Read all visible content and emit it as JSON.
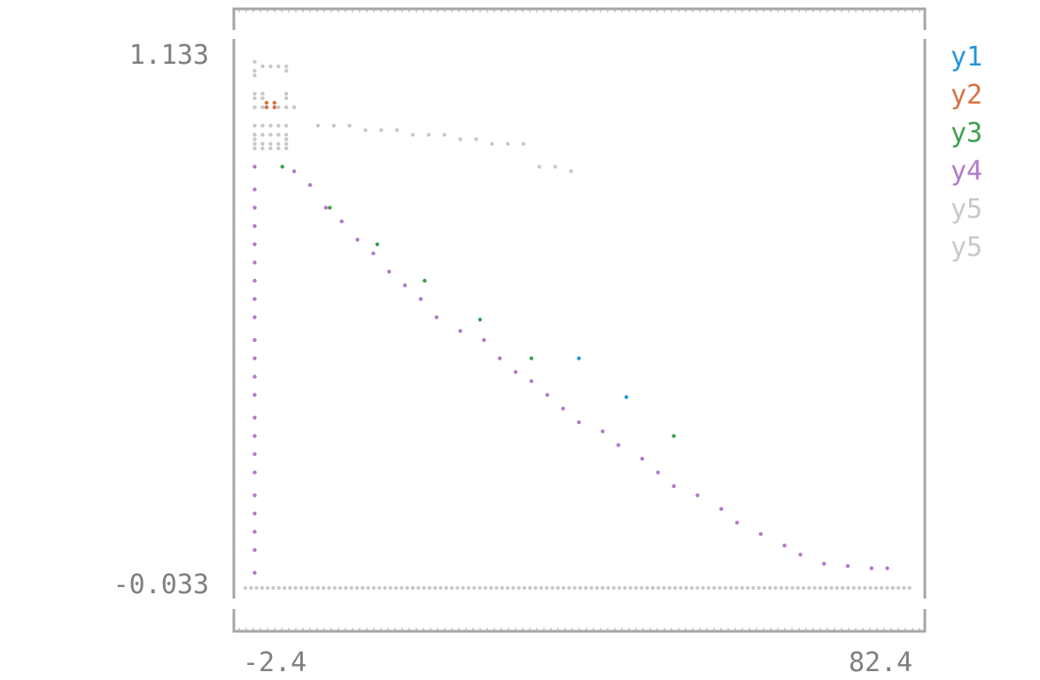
{
  "chart_data": {
    "type": "scatter",
    "title": "",
    "xlabel": "",
    "ylabel": "",
    "xlim": [
      -2.4,
      82.4
    ],
    "ylim": [
      -0.033,
      1.133
    ],
    "x_tick_labels": [
      "-2.4",
      "82.4"
    ],
    "y_tick_labels": [
      "1.133",
      "-0.033"
    ],
    "legend_placement": "right",
    "grid": false,
    "series": [
      {
        "name": "y1",
        "color": "#2196d9",
        "points": [
          [
            40,
            0.47
          ],
          [
            46,
            0.385
          ]
        ]
      },
      {
        "name": "y2",
        "color": "#d97044",
        "points": [
          [
            0.5,
            1.03
          ],
          [
            1.5,
            1.03
          ],
          [
            0.5,
            1.02
          ],
          [
            1.5,
            1.02
          ]
        ]
      },
      {
        "name": "y3",
        "color": "#3f9f4f",
        "points": [
          [
            2.5,
            0.89
          ],
          [
            8.5,
            0.8
          ],
          [
            14.5,
            0.72
          ],
          [
            20.5,
            0.64
          ],
          [
            27.5,
            0.555
          ],
          [
            34,
            0.47
          ],
          [
            52,
            0.3
          ]
        ]
      },
      {
        "name": "y4",
        "color": "#b27ac8",
        "points": [
          [
            -1,
            0.89
          ],
          [
            -1,
            0.84
          ],
          [
            -1,
            0.8
          ],
          [
            -1,
            0.76
          ],
          [
            -1,
            0.72
          ],
          [
            -1,
            0.68
          ],
          [
            -1,
            0.64
          ],
          [
            -1,
            0.6
          ],
          [
            -1,
            0.56
          ],
          [
            -1,
            0.51
          ],
          [
            -1,
            0.47
          ],
          [
            -1,
            0.43
          ],
          [
            -1,
            0.39
          ],
          [
            -1,
            0.34
          ],
          [
            -1,
            0.3
          ],
          [
            -1,
            0.26
          ],
          [
            -1,
            0.22
          ],
          [
            -1,
            0.17
          ],
          [
            -1,
            0.13
          ],
          [
            -1,
            0.09
          ],
          [
            -1,
            0.05
          ],
          [
            -1,
            0.0
          ],
          [
            4,
            0.88
          ],
          [
            6,
            0.85
          ],
          [
            8,
            0.8
          ],
          [
            10,
            0.77
          ],
          [
            12,
            0.73
          ],
          [
            14,
            0.7
          ],
          [
            16,
            0.66
          ],
          [
            18,
            0.63
          ],
          [
            20,
            0.6
          ],
          [
            22,
            0.56
          ],
          [
            25,
            0.53
          ],
          [
            28,
            0.51
          ],
          [
            30,
            0.47
          ],
          [
            32,
            0.44
          ],
          [
            34,
            0.42
          ],
          [
            36,
            0.39
          ],
          [
            38,
            0.36
          ],
          [
            40,
            0.33
          ],
          [
            43,
            0.31
          ],
          [
            45,
            0.28
          ],
          [
            48,
            0.25
          ],
          [
            50,
            0.22
          ],
          [
            52,
            0.19
          ],
          [
            55,
            0.17
          ],
          [
            58,
            0.14
          ],
          [
            60,
            0.11
          ],
          [
            63,
            0.085
          ],
          [
            66,
            0.06
          ],
          [
            68,
            0.04
          ],
          [
            71,
            0.02
          ],
          [
            74,
            0.015
          ],
          [
            77,
            0.01
          ],
          [
            79,
            0.01
          ]
        ]
      },
      {
        "name": "y5",
        "color": "#c8c8c8",
        "points": [
          [
            -1,
            1.12
          ],
          [
            0,
            1.11
          ],
          [
            1,
            1.11
          ],
          [
            2,
            1.11
          ],
          [
            3,
            1.11
          ],
          [
            -1,
            1.1
          ],
          [
            3,
            1.1
          ],
          [
            -1,
            1.09
          ],
          [
            -1,
            1.05
          ],
          [
            0,
            1.05
          ],
          [
            3,
            1.05
          ],
          [
            -1,
            1.04
          ],
          [
            0,
            1.04
          ],
          [
            3,
            1.04
          ],
          [
            -1,
            1.02
          ],
          [
            0,
            1.02
          ],
          [
            2,
            1.02
          ],
          [
            3,
            1.02
          ],
          [
            4,
            1.02
          ],
          [
            -1,
            0.98
          ],
          [
            0,
            0.98
          ],
          [
            1,
            0.98
          ],
          [
            2,
            0.98
          ],
          [
            3,
            0.98
          ],
          [
            -1,
            0.96
          ],
          [
            0,
            0.96
          ],
          [
            1,
            0.96
          ],
          [
            2,
            0.96
          ],
          [
            3,
            0.96
          ],
          [
            -1,
            0.95
          ],
          [
            3,
            0.95
          ],
          [
            -1,
            0.94
          ],
          [
            0,
            0.94
          ],
          [
            1,
            0.94
          ],
          [
            2,
            0.94
          ],
          [
            3,
            0.94
          ],
          [
            -1,
            0.93
          ],
          [
            0,
            0.93
          ],
          [
            1,
            0.93
          ],
          [
            2,
            0.93
          ],
          [
            3,
            0.93
          ],
          [
            7,
            0.98
          ],
          [
            9,
            0.98
          ],
          [
            11,
            0.98
          ],
          [
            13,
            0.97
          ],
          [
            15,
            0.97
          ],
          [
            17,
            0.97
          ],
          [
            19,
            0.96
          ],
          [
            21,
            0.96
          ],
          [
            23,
            0.96
          ],
          [
            25,
            0.95
          ],
          [
            27,
            0.95
          ],
          [
            29,
            0.94
          ],
          [
            31,
            0.94
          ],
          [
            33,
            0.94
          ],
          [
            35,
            0.89
          ],
          [
            37,
            0.89
          ],
          [
            39,
            0.88
          ]
        ]
      },
      {
        "name": "y5",
        "color": "#c8c8c8",
        "points": []
      },
      {
        "name": "",
        "color": "#808080",
        "points": [
          [
            -2.4,
            -0.033
          ],
          [
            0,
            -0.033
          ],
          [
            5,
            -0.033
          ],
          [
            10,
            -0.033
          ],
          [
            15,
            -0.033
          ],
          [
            20,
            -0.033
          ],
          [
            25,
            -0.033
          ],
          [
            30,
            -0.033
          ],
          [
            35,
            -0.033
          ],
          [
            40,
            -0.033
          ],
          [
            45,
            -0.033
          ],
          [
            50,
            -0.033
          ],
          [
            55,
            -0.033
          ],
          [
            60,
            -0.033
          ],
          [
            65,
            -0.033
          ],
          [
            70,
            -0.033
          ],
          [
            75,
            -0.033
          ],
          [
            80,
            -0.033
          ],
          [
            82.4,
            -0.033
          ]
        ]
      }
    ]
  }
}
